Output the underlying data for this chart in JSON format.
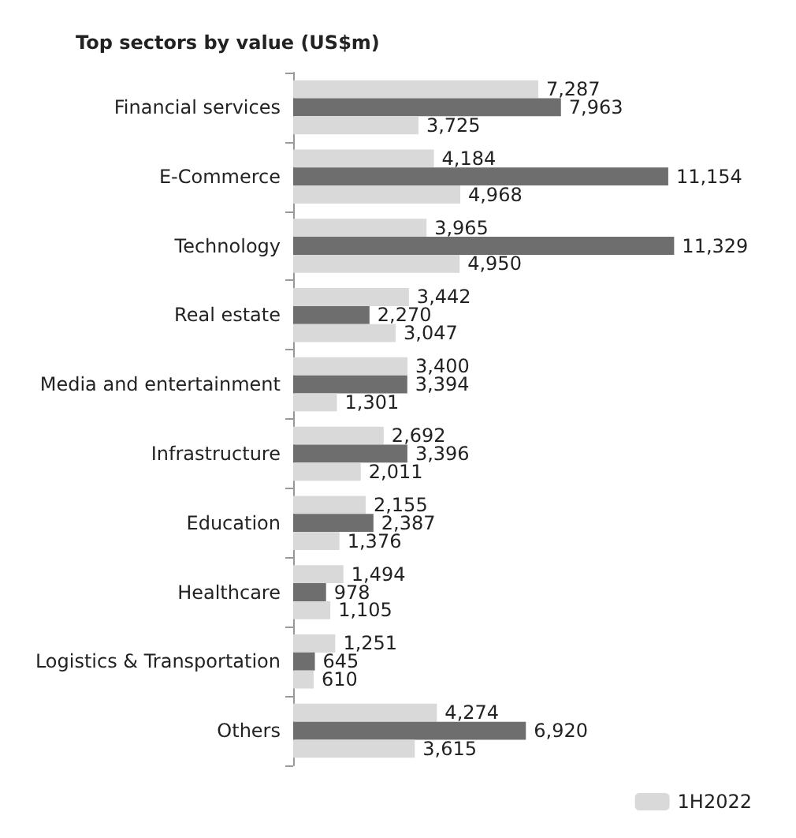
{
  "chart_data": {
    "type": "bar",
    "orientation": "horizontal",
    "title": "Top sectors by value (US$m)",
    "categories": [
      "Financial services",
      "E-Commerce",
      "Technology",
      "Real estate",
      "Media and entertainment",
      "Infrastructure",
      "Education",
      "Healthcare",
      "Logistics & Transportation",
      "Others"
    ],
    "series": [
      {
        "name": "1H2022",
        "color": "#d9d9d9",
        "values": [
          7287,
          4184,
          3965,
          3442,
          3400,
          2692,
          2155,
          1494,
          1251,
          4274
        ],
        "value_labels": [
          "7,287",
          "4,184",
          "3,965",
          "3,442",
          "3,400",
          "2,692",
          "2,155",
          "1,494",
          "1,251",
          "4,274"
        ]
      },
      {
        "color": "#6e6e6e",
        "values": [
          7963,
          11154,
          11329,
          2270,
          3394,
          3396,
          2387,
          978,
          645,
          6920
        ],
        "value_labels": [
          "7,963",
          "11,154",
          "11,329",
          "2,270",
          "3,394",
          "3,396",
          "2,387",
          "978",
          "645",
          "6,920"
        ]
      },
      {
        "color": "#d9d9d9",
        "values": [
          3725,
          4968,
          4950,
          3047,
          1301,
          2011,
          1376,
          1105,
          610,
          3615
        ],
        "value_labels": [
          "3,725",
          "4,968",
          "4,950",
          "3,047",
          "1,301",
          "2,011",
          "1,376",
          "1,105",
          "610",
          "3,615"
        ]
      }
    ],
    "legend": "bottom right",
    "grid": false
  }
}
